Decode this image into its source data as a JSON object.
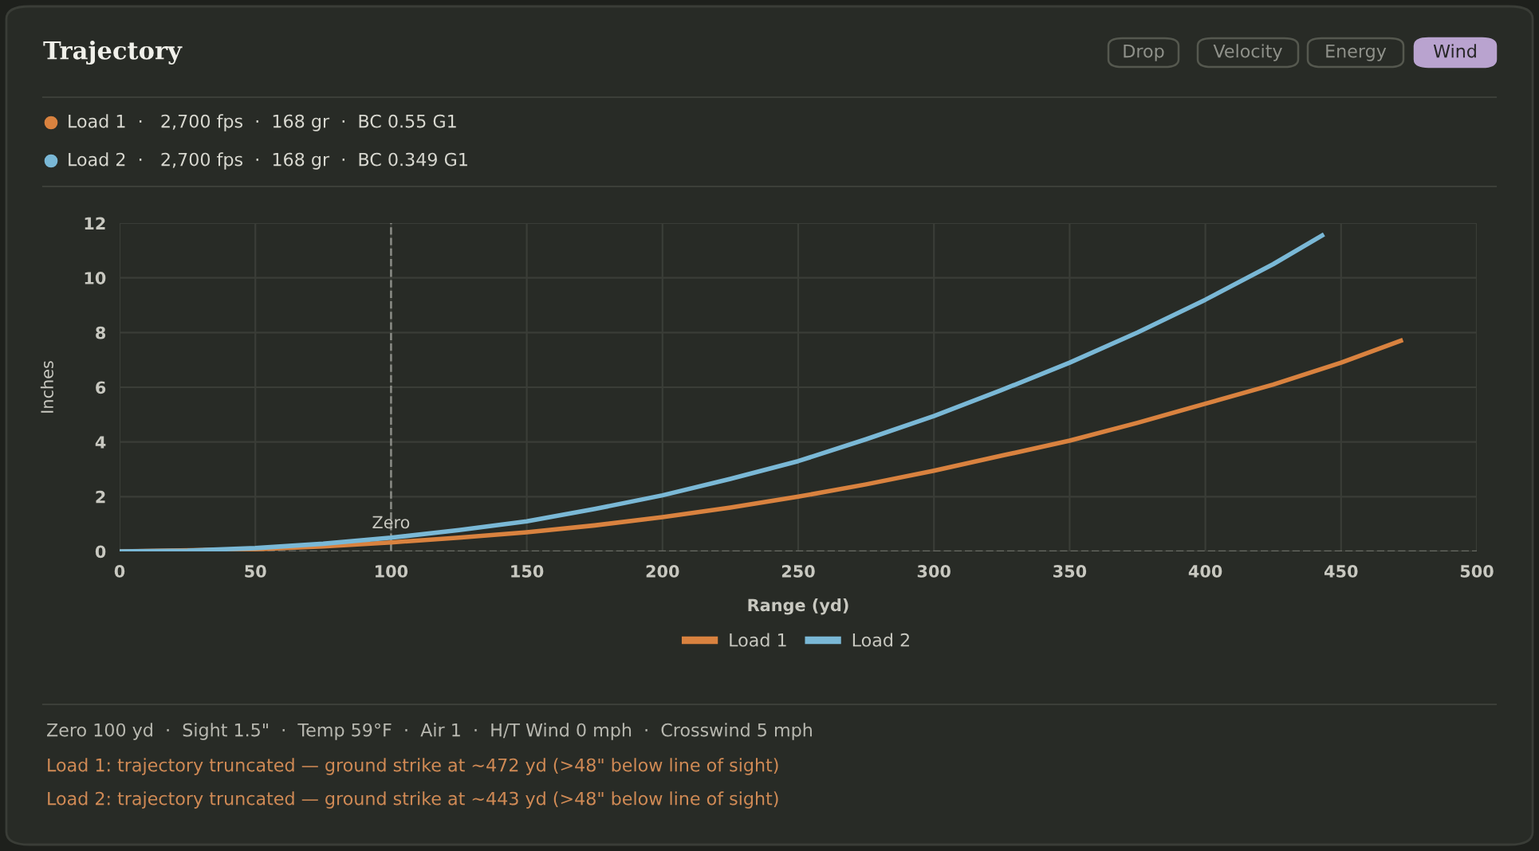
{
  "chart_data": {
    "type": "line",
    "title": "Trajectory",
    "xlabel": "Range (yd)",
    "ylabel": "Inches",
    "xlim": [
      0,
      500
    ],
    "xticks": [
      0,
      50,
      100,
      150,
      200,
      250,
      300,
      350,
      400,
      450,
      500
    ],
    "ylim": [
      0,
      12
    ],
    "yticks": [
      0,
      2,
      4,
      6,
      8,
      10,
      12
    ],
    "grid": true,
    "legend": "bottom",
    "marker": "none",
    "line_style": "solid",
    "series": [
      {
        "name": "Load 1",
        "color": "#d9823f",
        "x": [
          0,
          50,
          75,
          100,
          125,
          150,
          175,
          200,
          225,
          250,
          275,
          300,
          325,
          350,
          375,
          400,
          425,
          450,
          472
        ],
        "values": [
          0,
          0.08,
          0.18,
          0.33,
          0.5,
          0.7,
          0.95,
          1.25,
          1.6,
          2.0,
          2.45,
          2.95,
          3.5,
          4.05,
          4.7,
          5.4,
          6.1,
          6.9,
          7.7
        ]
      },
      {
        "name": "Load 2",
        "color": "#7ab8d6",
        "x": [
          0,
          25,
          50,
          75,
          100,
          125,
          150,
          175,
          200,
          225,
          250,
          275,
          300,
          325,
          350,
          375,
          400,
          425,
          443
        ],
        "values": [
          0,
          0.03,
          0.12,
          0.28,
          0.5,
          0.78,
          1.1,
          1.55,
          2.05,
          2.65,
          3.3,
          4.1,
          4.95,
          5.9,
          6.9,
          8.0,
          9.2,
          10.5,
          11.55
        ]
      }
    ],
    "ref_lines": [
      {
        "axis": "x",
        "value": 100,
        "label": "Zero",
        "color": "#8a8c86",
        "line_style": "dashed"
      },
      {
        "axis": "y",
        "value": 0,
        "label": null,
        "color": "#6a6c66",
        "line_style": "dashed"
      }
    ],
    "annotations": [
      "Drop",
      "Velocity",
      "Energy",
      "Wind",
      "Load 1  ·   2,700 fps  ·  168 gr  ·  BC 0.55 G1",
      "Load 2  ·   2,700 fps  ·  168 gr  ·  BC 0.349 G1",
      "Zero 100 yd  ·  Sight 1.5\"  ·  Temp 59°F  ·  Air 1  ·  H/T Wind 0 mph  ·  Crosswind 5 mph",
      "Load 1: trajectory truncated — ground strike at ~472 yd (>48\" below line of sight)",
      "Load 2: trajectory truncated — ground strike at ~443 yd (>48\" below line of sight)"
    ]
  }
}
